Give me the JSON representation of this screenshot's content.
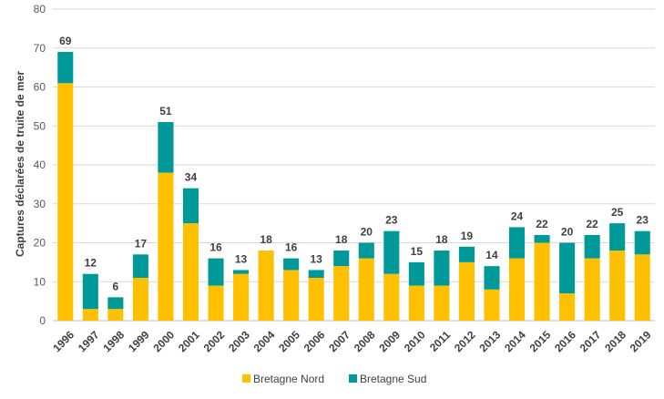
{
  "chart_data": {
    "type": "bar",
    "stacked": true,
    "ylabel": "Captures déclarées de truite de mer",
    "xlabel": "",
    "ylim": [
      0,
      80
    ],
    "yticks": [
      0,
      10,
      20,
      30,
      40,
      50,
      60,
      70,
      80
    ],
    "grid": true,
    "legend_position": "bottom",
    "categories": [
      "1996",
      "1997",
      "1998",
      "1999",
      "2000",
      "2001",
      "2002",
      "2003",
      "2004",
      "2005",
      "2006",
      "2007",
      "2008",
      "2009",
      "2010",
      "2011",
      "2012",
      "2013",
      "2014",
      "2015",
      "2016",
      "2017",
      "2018",
      "2019"
    ],
    "series": [
      {
        "name": "Bretagne Nord",
        "color": "#ffc000",
        "values": [
          61,
          3,
          3,
          11,
          38,
          25,
          9,
          12,
          18,
          13,
          11,
          14,
          16,
          12,
          9,
          9,
          15,
          8,
          16,
          20,
          7,
          16,
          18,
          17
        ]
      },
      {
        "name": "Bretagne Sud",
        "color": "#009999",
        "values": [
          8,
          9,
          3,
          6,
          13,
          9,
          7,
          1,
          0,
          3,
          2,
          4,
          4,
          11,
          6,
          9,
          4,
          6,
          8,
          2,
          13,
          6,
          7,
          6
        ]
      }
    ],
    "totals": [
      "69",
      "12",
      "6",
      "17",
      "51",
      "34",
      "16",
      "13",
      "18",
      "16",
      "13",
      "18",
      "20",
      "23",
      "15",
      "18",
      "19",
      "14",
      "24",
      "22",
      "20",
      "22",
      "25",
      "23"
    ]
  }
}
